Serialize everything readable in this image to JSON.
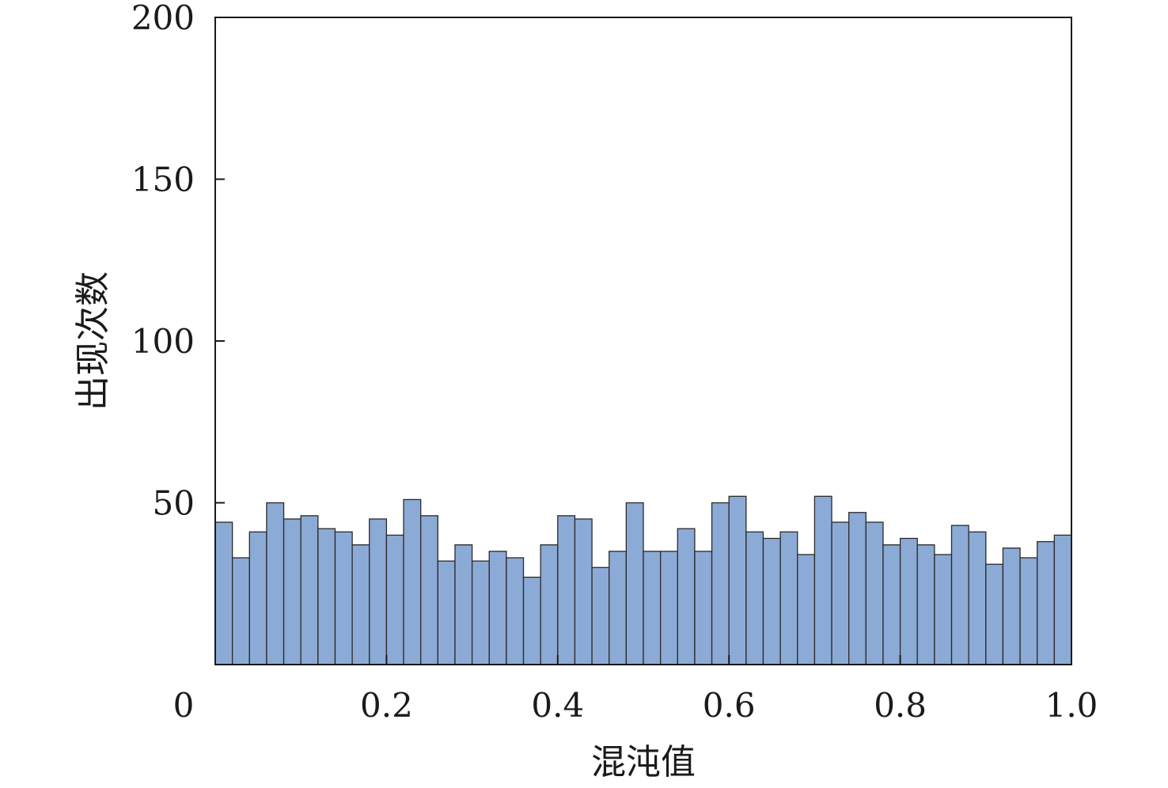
{
  "chart_data": {
    "type": "bar",
    "title": "",
    "xlabel": "混沌值",
    "ylabel": "出现次数",
    "xlim": [
      0,
      1.0
    ],
    "ylim": [
      0,
      200
    ],
    "x_ticks": [
      "0",
      "0.2",
      "0.4",
      "0.6",
      "0.8",
      "1.0"
    ],
    "y_ticks": [
      "50",
      "100",
      "150",
      "200"
    ],
    "grid": false,
    "bar_color": "#8caad6",
    "bin_width": 0.02,
    "values": [
      44,
      33,
      41,
      50,
      45,
      46,
      42,
      41,
      37,
      45,
      40,
      51,
      46,
      32,
      37,
      32,
      35,
      33,
      27,
      37,
      46,
      45,
      30,
      35,
      50,
      35,
      35,
      42,
      35,
      50,
      52,
      41,
      39,
      41,
      34,
      52,
      44,
      47,
      44,
      37,
      39,
      37,
      34,
      43,
      41,
      31,
      36,
      33,
      38,
      40
    ]
  }
}
